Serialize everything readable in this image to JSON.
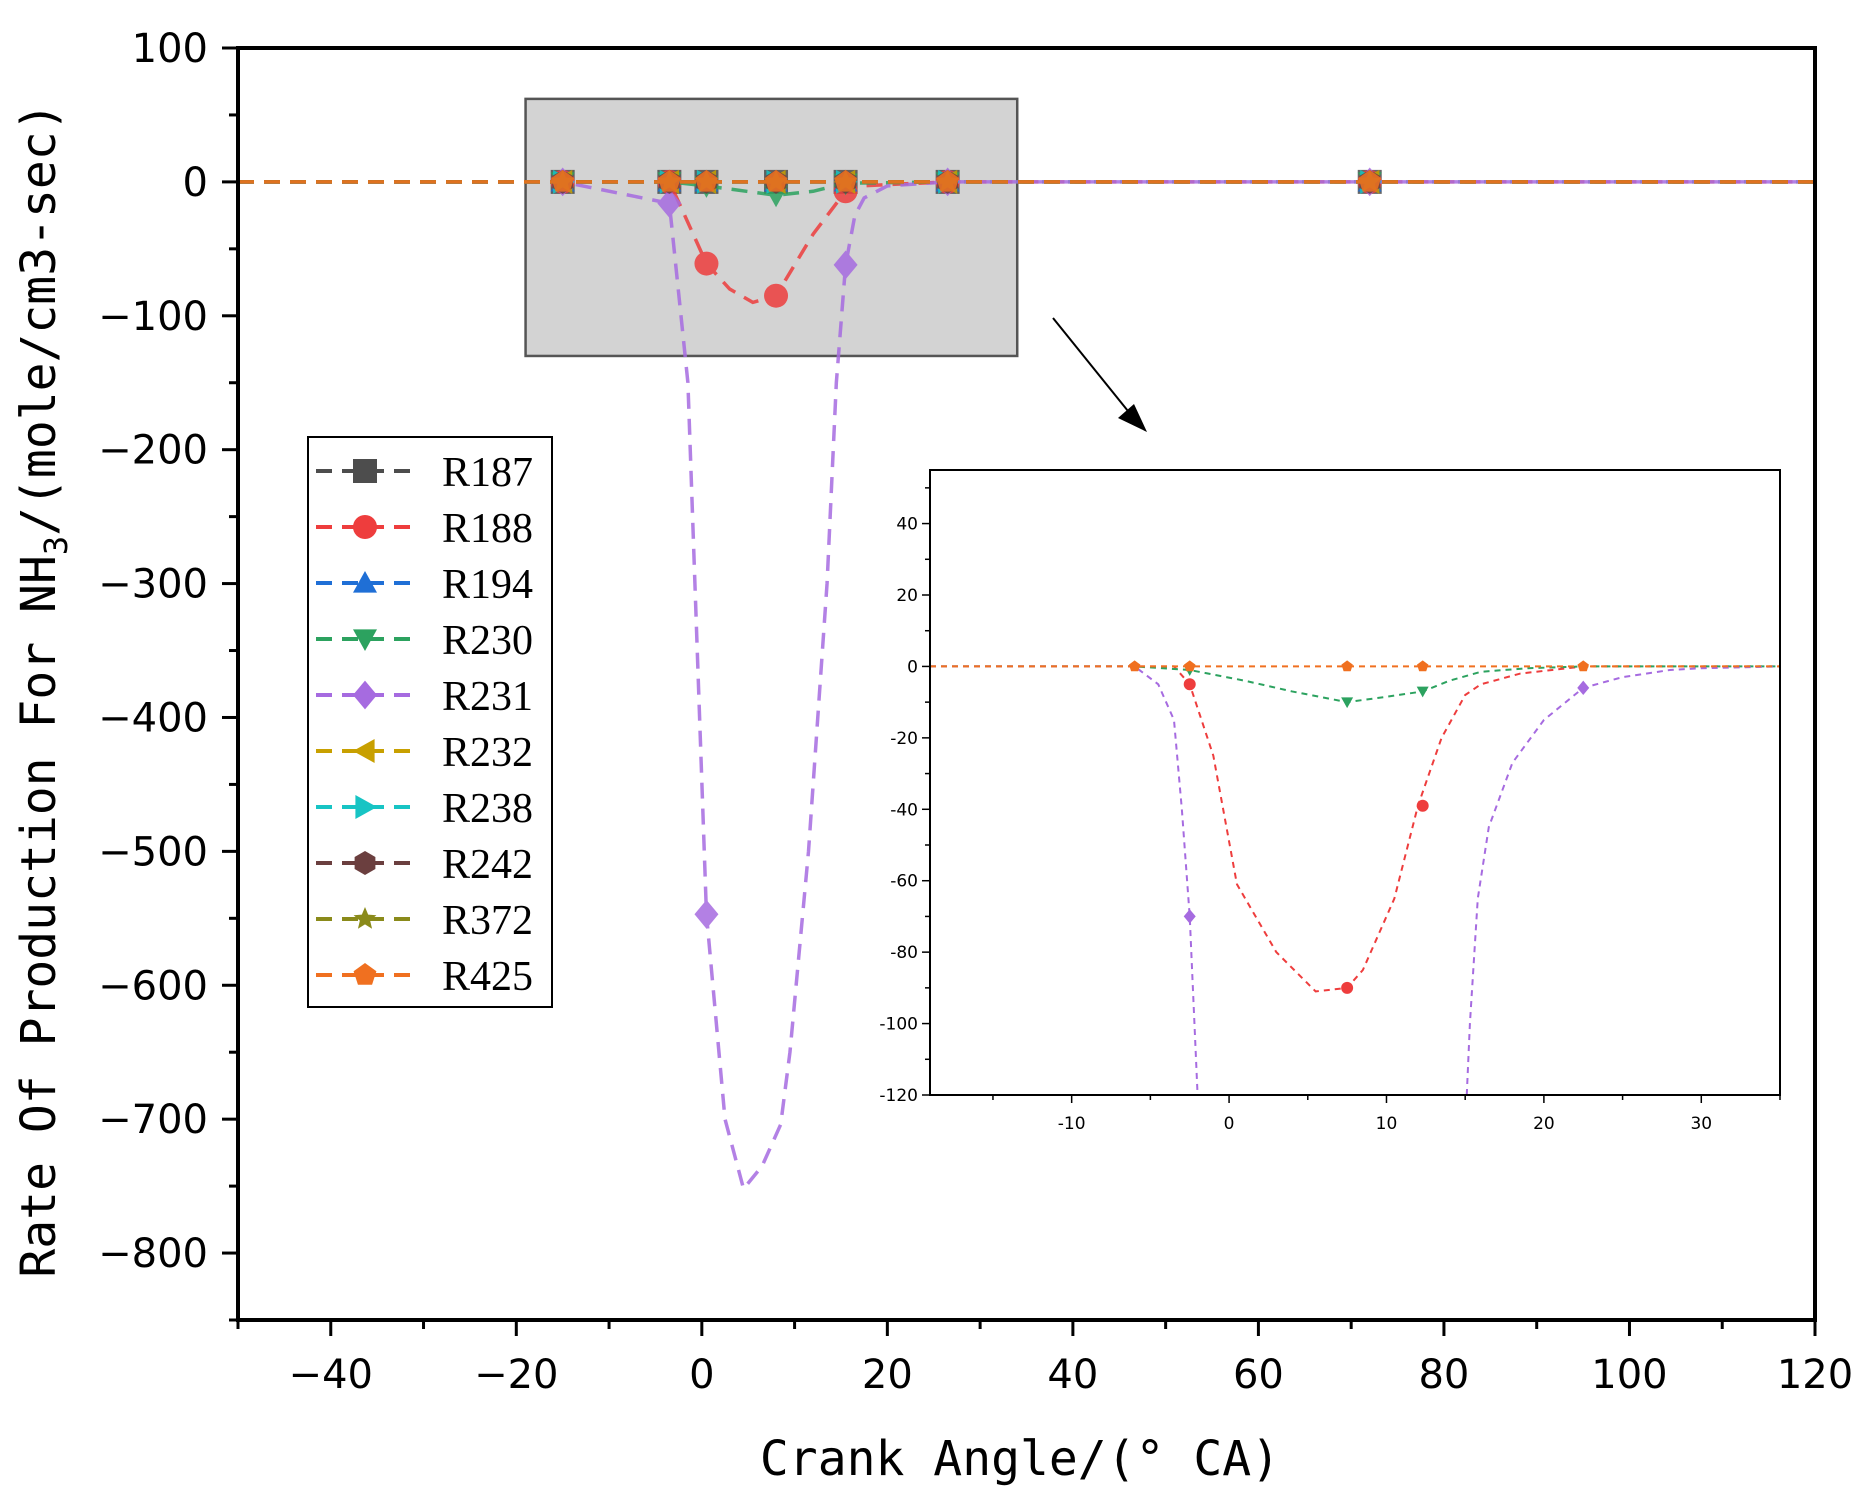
{
  "chart_data": {
    "type": "line",
    "xlabel": "Crank Angle/(° CA)",
    "ylabel_prefix": "Rate Of Production For NH",
    "ylabel_sub": "3",
    "ylabel_suffix": "/(mole/cm3-sec)",
    "xlim": [
      -50,
      120
    ],
    "ylim": [
      -850,
      100
    ],
    "xticks": [
      -40,
      -20,
      0,
      20,
      40,
      60,
      80,
      100,
      120
    ],
    "xtick_labels": [
      "−40",
      "−20",
      "0",
      "20",
      "40",
      "60",
      "80",
      "100",
      "120"
    ],
    "yticks": [
      100,
      0,
      -100,
      -200,
      -300,
      -400,
      -500,
      -600,
      -700,
      -800
    ],
    "ytick_labels": [
      "100",
      "0",
      "−100",
      "−200",
      "−300",
      "−400",
      "−500",
      "−600",
      "−700",
      "−800"
    ],
    "zoom_box": {
      "x": [
        -19,
        34
      ],
      "y": [
        -130,
        62
      ]
    },
    "series": [
      {
        "name": "R187",
        "color": "#4d4d4d",
        "marker": "square",
        "x": [
          -50,
          -15,
          -3.5,
          0.5,
          8,
          15.5,
          26.5,
          72,
          120
        ],
        "y": [
          0,
          0,
          0,
          0,
          0,
          0,
          0,
          0,
          0
        ]
      },
      {
        "name": "R188",
        "color": "#ee3d3d",
        "marker": "circle",
        "x": [
          -50,
          -15,
          -3.5,
          -2.5,
          0.5,
          3,
          5.5,
          8,
          12,
          15.5,
          17,
          26.5,
          30,
          72,
          120
        ],
        "y": [
          0,
          0,
          0,
          -15,
          -61,
          -80,
          -90,
          -85,
          -39,
          -7,
          -3,
          0,
          0,
          0,
          0
        ]
      },
      {
        "name": "R194",
        "color": "#1f6fd6",
        "marker": "triangle-up",
        "x": [
          -50,
          -15,
          -3.5,
          0.5,
          8,
          15.5,
          26.5,
          72,
          120
        ],
        "y": [
          0,
          0,
          0,
          0,
          0,
          0,
          0,
          0,
          0
        ]
      },
      {
        "name": "R230",
        "color": "#2ca25f",
        "marker": "triangle-down",
        "x": [
          -50,
          -15,
          -3.5,
          0.5,
          8,
          12,
          15.5,
          26.5,
          72,
          120
        ],
        "y": [
          0,
          0,
          0,
          -3,
          -10,
          -7,
          -1,
          0,
          0,
          0
        ]
      },
      {
        "name": "R231",
        "color": "#a66be0",
        "marker": "diamond",
        "x": [
          -50,
          -15,
          -3.5,
          -1.5,
          0.5,
          2.5,
          4.5,
          6.5,
          8.5,
          9.5,
          11.5,
          13.5,
          14.5,
          15.5,
          16.5,
          17.5,
          20,
          26.5,
          30,
          72,
          120
        ],
        "y": [
          0,
          0,
          -16,
          -150,
          -547,
          -700,
          -752,
          -735,
          -704,
          -650,
          -500,
          -300,
          -150,
          -62,
          -25,
          -12,
          -3,
          0,
          0,
          0,
          0
        ]
      },
      {
        "name": "R232",
        "color": "#c8a000",
        "marker": "triangle-left",
        "x": [
          -50,
          -15,
          -3.5,
          0.5,
          8,
          15.5,
          26.5,
          72,
          120
        ],
        "y": [
          0,
          0,
          0,
          0,
          0,
          0,
          0,
          0,
          0
        ]
      },
      {
        "name": "R238",
        "color": "#17c4c4",
        "marker": "triangle-right",
        "x": [
          -50,
          -15,
          -3.5,
          0.5,
          8,
          15.5,
          26.5,
          72,
          120
        ],
        "y": [
          0,
          0,
          0,
          0,
          0,
          0,
          0,
          0,
          0
        ]
      },
      {
        "name": "R242",
        "color": "#6b3f3f",
        "marker": "hexagon",
        "x": [
          -50,
          -15,
          -3.5,
          0.5,
          8,
          15.5,
          26.5,
          72,
          120
        ],
        "y": [
          0,
          0,
          0,
          0,
          0,
          0,
          0,
          0,
          0
        ]
      },
      {
        "name": "R372",
        "color": "#8a8a1a",
        "marker": "star",
        "x": [
          -50,
          -15,
          -3.5,
          0.5,
          8,
          15.5,
          26.5,
          72,
          120
        ],
        "y": [
          0,
          0,
          0,
          0,
          0,
          0,
          0,
          0,
          0
        ]
      },
      {
        "name": "R425",
        "color": "#f07020",
        "marker": "pentagon",
        "x": [
          -50,
          -15,
          -3.5,
          0.5,
          8,
          15.5,
          26.5,
          72,
          120
        ],
        "y": [
          0,
          0,
          0,
          0,
          0,
          0,
          0,
          0,
          0
        ]
      }
    ],
    "inset": {
      "xlim": [
        -19,
        35
      ],
      "ylim": [
        -120,
        55
      ],
      "xticks": [
        -10,
        0,
        10,
        20,
        30
      ],
      "xtick_labels": [
        "-10",
        "0",
        "10",
        "20",
        "30"
      ],
      "yticks": [
        40,
        20,
        0,
        -20,
        -40,
        -60,
        -80,
        -100,
        -120
      ],
      "ytick_labels": [
        "40",
        "20",
        "0",
        "-20",
        "-40",
        "-60",
        "-80",
        "-100",
        "-120"
      ],
      "series": [
        {
          "name": "R188",
          "color": "#ee3d3d",
          "x": [
            -19,
            -6,
            -3.5,
            -2.5,
            -1,
            0.5,
            3,
            5.5,
            7.5,
            8.5,
            10.5,
            12,
            13.5,
            15,
            16,
            18.5,
            22.5,
            26,
            35
          ],
          "y": [
            0,
            0,
            0,
            -5,
            -25,
            -61,
            -80,
            -91,
            -90,
            -85,
            -65,
            -39,
            -20,
            -8,
            -5,
            -2,
            0,
            0,
            0
          ],
          "markers_x": [
            -2.5,
            7.5,
            12.3
          ],
          "markers_y": [
            -5,
            -90,
            -39
          ]
        },
        {
          "name": "R230",
          "color": "#2ca25f",
          "x": [
            -19,
            -6,
            -2.5,
            1,
            4,
            7.5,
            10,
            12.3,
            14,
            16,
            19,
            22.5,
            35
          ],
          "y": [
            0,
            0,
            -1,
            -4,
            -7,
            -10,
            -8.5,
            -7,
            -4,
            -1.5,
            -0.5,
            0,
            0
          ],
          "markers_x": [
            -2.5,
            7.5,
            12.3
          ],
          "markers_y": [
            -1,
            -10,
            -7
          ]
        },
        {
          "name": "R231",
          "color": "#a66be0",
          "x": [
            -19,
            -6,
            -4.5,
            -3.5,
            -3,
            -2.5,
            -2.2,
            -2
          ],
          "y": [
            0,
            0,
            -5,
            -15,
            -40,
            -70,
            -100,
            -120
          ],
          "x2": [
            15.1,
            15.3,
            15.8,
            16.5,
            18,
            20,
            22.5,
            25,
            28,
            30,
            35
          ],
          "y2": [
            -120,
            -100,
            -65,
            -45,
            -27,
            -15,
            -6,
            -3,
            -1,
            -0.5,
            0
          ],
          "markers_x": [
            -2.5,
            22.5
          ],
          "markers_y": [
            -70,
            -6
          ]
        },
        {
          "name": "R425",
          "color": "#f07020",
          "x": [
            -19,
            35
          ],
          "y": [
            0,
            0
          ],
          "markers_x": [
            -6,
            -2.5,
            7.5,
            12.3,
            22.5
          ],
          "markers_y": [
            0,
            0,
            0,
            0,
            0
          ]
        }
      ]
    }
  }
}
